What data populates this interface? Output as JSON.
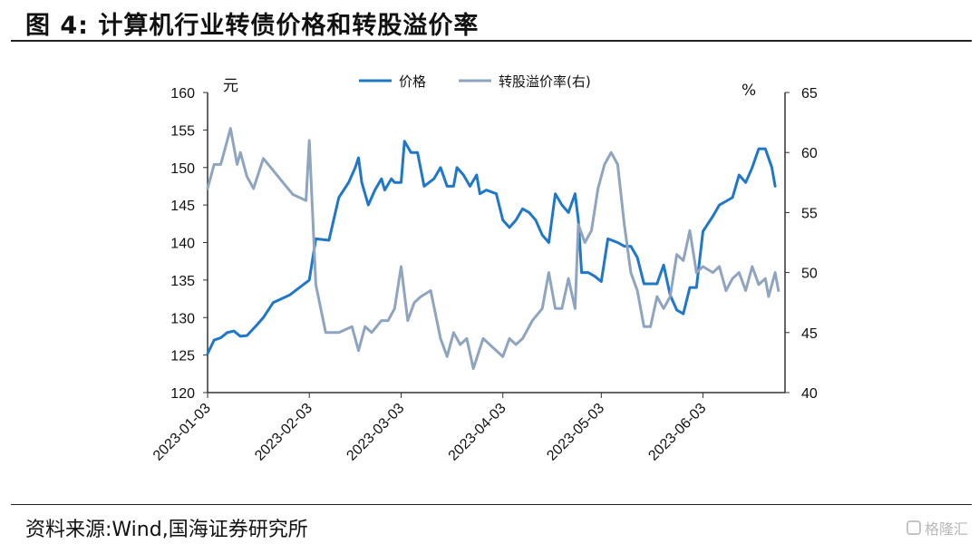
{
  "header": {
    "title": "图 4:  计算机行业转债价格和转股溢价率"
  },
  "footer": {
    "source": "资料来源:Wind,国海证券研究所",
    "watermark": "格隆汇"
  },
  "chart_data": {
    "type": "line",
    "title": "",
    "x_ticks": [
      "2023-01-03",
      "2023-02-03",
      "2023-03-03",
      "2023-04-03",
      "2023-05-03",
      "2023-06-03"
    ],
    "x_range": [
      "2023-01-03",
      "2023-06-28"
    ],
    "left_axis": {
      "unit": "元",
      "ylim": [
        120,
        160
      ],
      "ticks": [
        120,
        125,
        130,
        135,
        140,
        145,
        150,
        155,
        160
      ]
    },
    "right_axis": {
      "unit": "%",
      "ylim": [
        40,
        65
      ],
      "ticks": [
        40,
        45,
        50,
        55,
        60,
        65
      ]
    },
    "legend": {
      "placement": "top-center"
    },
    "grid": false,
    "series": [
      {
        "name": "价格",
        "axis": "left",
        "color": "#1f77c9",
        "points": [
          [
            "2023-01-03",
            125.2
          ],
          [
            "2023-01-05",
            127.0
          ],
          [
            "2023-01-07",
            127.3
          ],
          [
            "2023-01-09",
            128.0
          ],
          [
            "2023-01-11",
            128.2
          ],
          [
            "2023-01-13",
            127.5
          ],
          [
            "2023-01-15",
            127.6
          ],
          [
            "2023-01-18",
            129.0
          ],
          [
            "2023-01-20",
            130.0
          ],
          [
            "2023-01-23",
            132.0
          ],
          [
            "2023-01-28",
            133.0
          ],
          [
            "2023-02-03",
            135.0
          ],
          [
            "2023-02-05",
            140.5
          ],
          [
            "2023-02-09",
            140.3
          ],
          [
            "2023-02-12",
            146.0
          ],
          [
            "2023-02-15",
            148.0
          ],
          [
            "2023-02-17",
            150.0
          ],
          [
            "2023-02-18",
            151.3
          ],
          [
            "2023-02-19",
            148.0
          ],
          [
            "2023-02-21",
            145.0
          ],
          [
            "2023-02-23",
            147.0
          ],
          [
            "2023-02-25",
            148.5
          ],
          [
            "2023-02-26",
            147.0
          ],
          [
            "2023-02-28",
            148.5
          ],
          [
            "2023-03-01",
            148.0
          ],
          [
            "2023-03-03",
            148.0
          ],
          [
            "2023-03-04",
            153.5
          ],
          [
            "2023-03-06",
            152.0
          ],
          [
            "2023-03-08",
            152.0
          ],
          [
            "2023-03-10",
            147.5
          ],
          [
            "2023-03-13",
            148.5
          ],
          [
            "2023-03-15",
            150.0
          ],
          [
            "2023-03-17",
            147.5
          ],
          [
            "2023-03-19",
            147.5
          ],
          [
            "2023-03-20",
            150.0
          ],
          [
            "2023-03-22",
            149.0
          ],
          [
            "2023-03-24",
            147.5
          ],
          [
            "2023-03-26",
            149.0
          ],
          [
            "2023-03-27",
            146.5
          ],
          [
            "2023-03-29",
            147.0
          ],
          [
            "2023-04-01",
            146.5
          ],
          [
            "2023-04-03",
            143.0
          ],
          [
            "2023-04-05",
            142.0
          ],
          [
            "2023-04-07",
            143.0
          ],
          [
            "2023-04-09",
            144.5
          ],
          [
            "2023-04-11",
            144.0
          ],
          [
            "2023-04-13",
            143.0
          ],
          [
            "2023-04-15",
            141.0
          ],
          [
            "2023-04-17",
            140.0
          ],
          [
            "2023-04-19",
            146.5
          ],
          [
            "2023-04-21",
            145.0
          ],
          [
            "2023-04-23",
            144.0
          ],
          [
            "2023-04-25",
            146.5
          ],
          [
            "2023-04-26",
            143.0
          ],
          [
            "2023-04-27",
            136.0
          ],
          [
            "2023-04-29",
            136.0
          ],
          [
            "2023-05-01",
            135.5
          ],
          [
            "2023-05-03",
            134.8
          ],
          [
            "2023-05-05",
            140.5
          ],
          [
            "2023-05-08",
            140.0
          ],
          [
            "2023-05-10",
            139.5
          ],
          [
            "2023-05-12",
            139.5
          ],
          [
            "2023-05-14",
            138.0
          ],
          [
            "2023-05-16",
            134.5
          ],
          [
            "2023-05-18",
            134.5
          ],
          [
            "2023-05-20",
            134.5
          ],
          [
            "2023-05-22",
            137.0
          ],
          [
            "2023-05-24",
            133.0
          ],
          [
            "2023-05-26",
            131.0
          ],
          [
            "2023-05-28",
            130.5
          ],
          [
            "2023-05-30",
            134.0
          ],
          [
            "2023-06-01",
            134.0
          ],
          [
            "2023-06-03",
            141.5
          ],
          [
            "2023-06-06",
            143.5
          ],
          [
            "2023-06-08",
            145.0
          ],
          [
            "2023-06-10",
            145.5
          ],
          [
            "2023-06-12",
            146.0
          ],
          [
            "2023-06-14",
            149.0
          ],
          [
            "2023-06-16",
            148.0
          ],
          [
            "2023-06-18",
            150.0
          ],
          [
            "2023-06-20",
            152.5
          ],
          [
            "2023-06-22",
            152.5
          ],
          [
            "2023-06-24",
            150.0
          ],
          [
            "2023-06-25",
            147.5
          ]
        ]
      },
      {
        "name": "转股溢价率(右)",
        "axis": "right",
        "color": "#8ea4bf",
        "points": [
          [
            "2023-01-03",
            57.0
          ],
          [
            "2023-01-05",
            59.0
          ],
          [
            "2023-01-07",
            59.0
          ],
          [
            "2023-01-08",
            60.0
          ],
          [
            "2023-01-10",
            62.0
          ],
          [
            "2023-01-12",
            59.0
          ],
          [
            "2023-01-13",
            60.0
          ],
          [
            "2023-01-15",
            58.0
          ],
          [
            "2023-01-17",
            57.0
          ],
          [
            "2023-01-20",
            59.5
          ],
          [
            "2023-01-23",
            58.5
          ],
          [
            "2023-01-26",
            57.5
          ],
          [
            "2023-01-29",
            56.5
          ],
          [
            "2023-02-02",
            56.0
          ],
          [
            "2023-02-03",
            61.0
          ],
          [
            "2023-02-05",
            49.0
          ],
          [
            "2023-02-08",
            45.0
          ],
          [
            "2023-02-12",
            45.0
          ],
          [
            "2023-02-16",
            45.5
          ],
          [
            "2023-02-18",
            43.5
          ],
          [
            "2023-02-20",
            45.5
          ],
          [
            "2023-02-22",
            45.0
          ],
          [
            "2023-02-25",
            46.0
          ],
          [
            "2023-02-27",
            46.0
          ],
          [
            "2023-03-01",
            47.0
          ],
          [
            "2023-03-03",
            50.5
          ],
          [
            "2023-03-05",
            46.0
          ],
          [
            "2023-03-07",
            47.5
          ],
          [
            "2023-03-09",
            48.0
          ],
          [
            "2023-03-12",
            48.5
          ],
          [
            "2023-03-15",
            44.5
          ],
          [
            "2023-03-17",
            43.0
          ],
          [
            "2023-03-19",
            45.0
          ],
          [
            "2023-03-21",
            44.0
          ],
          [
            "2023-03-23",
            44.5
          ],
          [
            "2023-03-25",
            42.0
          ],
          [
            "2023-03-28",
            44.5
          ],
          [
            "2023-04-01",
            43.5
          ],
          [
            "2023-04-03",
            43.0
          ],
          [
            "2023-04-05",
            44.5
          ],
          [
            "2023-04-07",
            44.0
          ],
          [
            "2023-04-09",
            44.5
          ],
          [
            "2023-04-12",
            46.0
          ],
          [
            "2023-04-15",
            47.0
          ],
          [
            "2023-04-17",
            50.0
          ],
          [
            "2023-04-19",
            47.0
          ],
          [
            "2023-04-21",
            47.0
          ],
          [
            "2023-04-23",
            49.5
          ],
          [
            "2023-04-25",
            47.0
          ],
          [
            "2023-04-26",
            54.0
          ],
          [
            "2023-04-28",
            52.5
          ],
          [
            "2023-04-30",
            53.5
          ],
          [
            "2023-05-02",
            57.0
          ],
          [
            "2023-05-04",
            59.0
          ],
          [
            "2023-05-06",
            60.0
          ],
          [
            "2023-05-08",
            59.0
          ],
          [
            "2023-05-10",
            54.0
          ],
          [
            "2023-05-12",
            50.0
          ],
          [
            "2023-05-14",
            48.5
          ],
          [
            "2023-05-16",
            45.5
          ],
          [
            "2023-05-18",
            45.5
          ],
          [
            "2023-05-20",
            48.0
          ],
          [
            "2023-05-22",
            47.0
          ],
          [
            "2023-05-24",
            48.0
          ],
          [
            "2023-05-26",
            51.5
          ],
          [
            "2023-05-28",
            51.0
          ],
          [
            "2023-05-30",
            53.5
          ],
          [
            "2023-06-01",
            50.0
          ],
          [
            "2023-06-03",
            50.5
          ],
          [
            "2023-06-06",
            50.0
          ],
          [
            "2023-06-08",
            50.5
          ],
          [
            "2023-06-10",
            48.5
          ],
          [
            "2023-06-12",
            49.5
          ],
          [
            "2023-06-14",
            50.0
          ],
          [
            "2023-06-16",
            48.5
          ],
          [
            "2023-06-18",
            50.5
          ],
          [
            "2023-06-20",
            49.0
          ],
          [
            "2023-06-22",
            49.5
          ],
          [
            "2023-06-23",
            48.0
          ],
          [
            "2023-06-25",
            50.0
          ],
          [
            "2023-06-26",
            48.5
          ]
        ]
      }
    ]
  }
}
